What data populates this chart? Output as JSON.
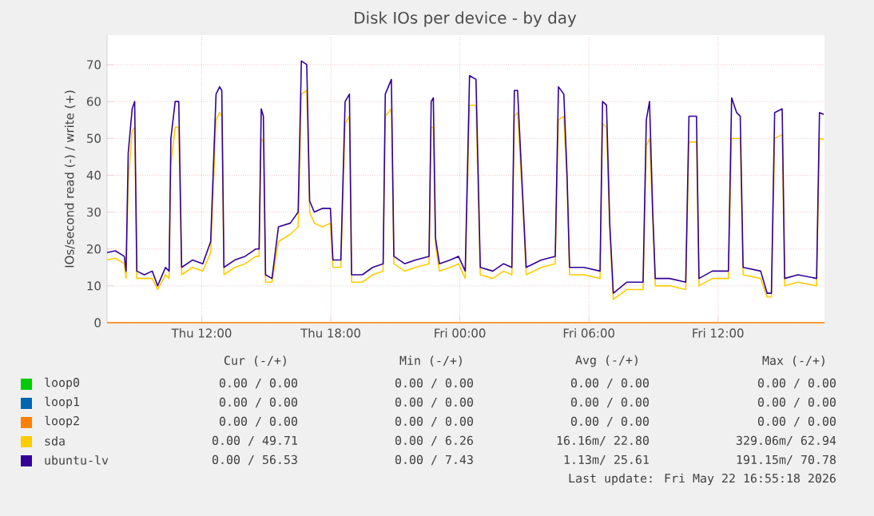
{
  "chart_data": {
    "type": "line",
    "title": "Disk IOs per device - by day",
    "ylabel": "IOs/second read (-) / write (+)",
    "xlim": [
      "2026-05-21T07:36",
      "2026-05-22T16:57"
    ],
    "ylim": [
      0,
      78
    ],
    "xticks": [
      {
        "value": "2026-05-21T12:00",
        "label": "Thu 12:00"
      },
      {
        "value": "2026-05-21T18:00",
        "label": "Thu 18:00"
      },
      {
        "value": "2026-05-22T00:00",
        "label": "Fri 00:00"
      },
      {
        "value": "2026-05-22T06:00",
        "label": "Fri 06:00"
      },
      {
        "value": "2026-05-22T12:00",
        "label": "Fri 12:00"
      }
    ],
    "yticks": [
      0,
      10,
      20,
      30,
      40,
      50,
      60,
      70
    ],
    "grid": true,
    "legend": "bottom",
    "x": [
      "2026-05-21T07:36",
      "2026-05-21T07:59",
      "2026-05-21T08:24",
      "2026-05-21T08:29",
      "2026-05-21T08:35",
      "2026-05-21T08:46",
      "2026-05-21T08:53",
      "2026-05-21T08:59",
      "2026-05-21T09:20",
      "2026-05-21T09:42",
      "2026-05-21T09:57",
      "2026-05-21T10:19",
      "2026-05-21T10:29",
      "2026-05-21T10:34",
      "2026-05-21T10:46",
      "2026-05-21T10:56",
      "2026-05-21T11:04",
      "2026-05-21T11:34",
      "2026-05-21T12:03",
      "2026-05-21T12:25",
      "2026-05-21T12:40",
      "2026-05-21T12:50",
      "2026-05-21T12:56",
      "2026-05-21T13:02",
      "2026-05-21T13:32",
      "2026-05-21T14:01",
      "2026-05-21T14:31",
      "2026-05-21T14:40",
      "2026-05-21T14:46",
      "2026-05-21T14:52",
      "2026-05-21T14:58",
      "2026-05-21T15:16",
      "2026-05-21T15:34",
      "2026-05-21T16:07",
      "2026-05-21T16:29",
      "2026-05-21T16:38",
      "2026-05-21T16:53",
      "2026-05-21T17:01",
      "2026-05-21T17:14",
      "2026-05-21T17:36",
      "2026-05-21T17:59",
      "2026-05-21T18:06",
      "2026-05-21T18:28",
      "2026-05-21T18:40",
      "2026-05-21T18:52",
      "2026-05-21T18:58",
      "2026-05-21T19:28",
      "2026-05-21T19:57",
      "2026-05-21T20:26",
      "2026-05-21T20:32",
      "2026-05-21T20:49",
      "2026-05-21T20:56",
      "2026-05-21T21:26",
      "2026-05-21T21:56",
      "2026-05-21T22:34",
      "2026-05-21T22:40",
      "2026-05-21T22:46",
      "2026-05-21T22:52",
      "2026-05-21T23:03",
      "2026-05-21T23:33",
      "2026-05-21T23:56",
      "2026-05-22T00:15",
      "2026-05-22T00:27",
      "2026-05-22T00:45",
      "2026-05-22T00:57",
      "2026-05-22T01:32",
      "2026-05-22T02:02",
      "2026-05-22T02:25",
      "2026-05-22T02:32",
      "2026-05-22T02:41",
      "2026-05-22T02:55",
      "2026-05-22T03:05",
      "2026-05-22T03:47",
      "2026-05-22T04:26",
      "2026-05-22T04:35",
      "2026-05-22T04:50",
      "2026-05-22T04:59",
      "2026-05-22T05:06",
      "2026-05-22T05:46",
      "2026-05-22T06:31",
      "2026-05-22T06:38",
      "2026-05-22T06:49",
      "2026-05-22T06:58",
      "2026-05-22T07:08",
      "2026-05-22T07:46",
      "2026-05-22T08:31",
      "2026-05-22T08:40",
      "2026-05-22T08:49",
      "2026-05-22T08:58",
      "2026-05-22T09:05",
      "2026-05-22T09:45",
      "2026-05-22T10:30",
      "2026-05-22T10:39",
      "2026-05-22T11:00",
      "2026-05-22T11:07",
      "2026-05-22T11:44",
      "2026-05-22T12:29",
      "2026-05-22T12:38",
      "2026-05-22T12:52",
      "2026-05-22T13:02",
      "2026-05-22T13:10",
      "2026-05-22T13:59",
      "2026-05-22T14:17",
      "2026-05-22T14:29",
      "2026-05-22T14:38",
      "2026-05-22T14:59",
      "2026-05-22T15:06",
      "2026-05-22T15:43",
      "2026-05-22T16:35",
      "2026-05-22T16:43",
      "2026-05-22T16:55"
    ],
    "series": [
      {
        "name": "loop0",
        "color": "#00cc00",
        "values": [
          null,
          null,
          null,
          null,
          null,
          null,
          null,
          null,
          null,
          null,
          null,
          null,
          null,
          null,
          null,
          null,
          null,
          null,
          null,
          null,
          null,
          null,
          null,
          null,
          null,
          null,
          null,
          null,
          null,
          null,
          null,
          null,
          null,
          null,
          null,
          null,
          null,
          null,
          null,
          null,
          null,
          null,
          null,
          null,
          null,
          null,
          null,
          null,
          null,
          null,
          null,
          null,
          null,
          null,
          null,
          null,
          null,
          null,
          null,
          null,
          null,
          null,
          null,
          null,
          null,
          null,
          null,
          null,
          null,
          null,
          null,
          null,
          null,
          null,
          null,
          null,
          null,
          null,
          null,
          null,
          null,
          null,
          null,
          null,
          null,
          null,
          null,
          null,
          null,
          null,
          null,
          null,
          null,
          null,
          null,
          null,
          null,
          null,
          null,
          null,
          null,
          null,
          null,
          null,
          null,
          null,
          null,
          null,
          null,
          null,
          null
        ]
      },
      {
        "name": "loop1",
        "color": "#0066b3",
        "values": [
          null,
          null,
          null,
          null,
          null,
          null,
          null,
          null,
          null,
          null,
          null,
          null,
          null,
          null,
          null,
          null,
          null,
          null,
          null,
          null,
          null,
          null,
          null,
          null,
          null,
          null,
          null,
          null,
          null,
          null,
          null,
          null,
          null,
          null,
          null,
          null,
          null,
          null,
          null,
          null,
          null,
          null,
          null,
          null,
          null,
          null,
          null,
          null,
          null,
          null,
          null,
          null,
          null,
          null,
          null,
          null,
          null,
          null,
          null,
          null,
          null,
          null,
          null,
          null,
          null,
          null,
          null,
          null,
          null,
          null,
          null,
          null,
          null,
          null,
          null,
          null,
          null,
          null,
          null,
          null,
          null,
          null,
          null,
          null,
          null,
          null,
          null,
          null,
          null,
          null,
          null,
          null,
          null,
          null,
          null,
          null,
          null,
          null,
          null,
          null,
          null,
          null,
          null,
          null,
          null,
          null,
          null,
          null,
          null,
          null,
          null
        ]
      },
      {
        "name": "loop2",
        "color": "#ff8000",
        "x": [
          "2026-05-21T07:36",
          "2026-05-22T16:57"
        ],
        "values": [
          0,
          0
        ]
      },
      {
        "name": "sda",
        "color": "#ffcc00",
        "values": [
          17,
          17.5,
          16,
          12,
          38,
          52,
          53,
          12,
          12,
          12,
          9,
          13,
          12,
          43,
          53,
          53,
          13,
          15,
          14,
          19,
          55,
          57,
          56,
          13,
          15,
          16,
          18,
          18,
          50,
          49,
          11,
          11,
          22,
          24,
          26,
          62,
          63,
          30,
          27,
          26,
          27,
          15,
          15,
          54,
          56,
          11,
          11,
          13,
          14,
          56,
          58,
          16,
          14,
          15,
          16,
          53,
          53,
          21,
          14,
          15,
          16,
          12,
          59,
          59,
          13,
          12,
          14,
          13,
          56,
          57,
          33,
          13,
          15,
          16,
          55,
          56,
          38,
          13,
          13,
          12,
          54,
          53,
          25,
          6.3,
          9,
          9,
          48,
          50,
          28,
          10,
          10,
          9,
          49,
          49,
          10,
          12,
          12,
          50,
          50,
          50,
          13,
          12,
          7,
          7,
          50,
          51,
          10,
          11,
          10,
          50,
          49.7
        ]
      },
      {
        "name": "ubuntu-lv",
        "color": "#330099",
        "values": [
          19,
          19.5,
          18,
          14,
          46,
          58,
          60,
          14,
          13,
          14,
          10,
          15,
          14,
          50,
          60,
          60,
          15,
          17,
          16,
          22,
          62,
          64,
          63,
          15,
          17,
          18,
          20,
          20,
          58,
          56,
          13,
          12,
          26,
          27,
          30,
          71,
          70,
          33,
          30,
          31,
          31,
          17,
          17,
          60,
          62,
          13,
          13,
          15,
          16,
          62,
          66,
          18,
          16,
          17,
          18,
          60,
          61,
          23,
          16,
          17,
          18,
          14,
          67,
          66,
          15,
          14,
          16,
          15,
          63,
          63,
          35,
          15,
          17,
          18,
          64,
          62,
          40,
          15,
          15,
          14,
          60,
          59,
          27,
          8,
          11,
          11,
          55,
          60,
          30,
          12,
          12,
          11,
          56,
          56,
          12,
          14,
          14,
          61,
          57,
          56,
          15,
          14,
          8,
          8,
          57,
          58,
          12,
          13,
          12,
          57,
          56.5
        ]
      }
    ],
    "annotations": [
      "Cur (-/+)",
      "Min (-/+)",
      "Avg (-/+)",
      "Max (-/+)",
      "0.00 /   0.00",
      "0.00 /   0.00",
      "0.00 /   0.00",
      "0.00 /   0.00",
      "0.00 /   0.00",
      "0.00 /   0.00",
      "0.00 /   0.00",
      "0.00 /   0.00",
      "0.00 /   0.00",
      "0.00 /   0.00",
      "0.00 /   0.00",
      "0.00 /   0.00",
      "0.00 /  49.71",
      "0.00 /   6.26",
      "16.16m/  22.80",
      "329.06m/  62.94",
      "0.00 /  56.53",
      "0.00 /   7.43",
      "1.13m/  25.61",
      "191.15m/  70.78",
      "Last update: Fri May 22 16:55:18 2026"
    ]
  }
}
